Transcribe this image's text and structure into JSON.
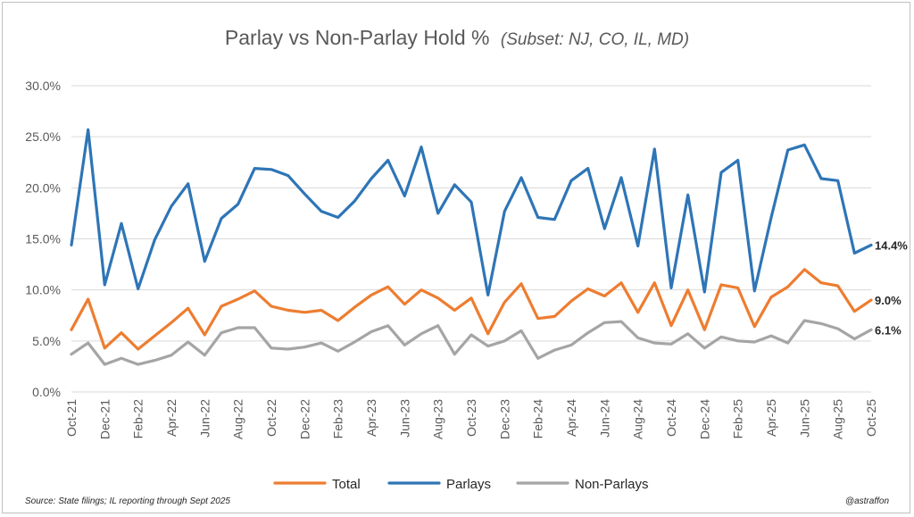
{
  "chart_data": {
    "type": "line",
    "title": "Parlay vs Non-Parlay Hold %",
    "subtitle": "(Subset: NJ, CO, IL, MD)",
    "ylim": [
      0,
      30
    ],
    "yticks": [
      "0.0%",
      "5.0%",
      "10.0%",
      "15.0%",
      "20.0%",
      "25.0%",
      "30.0%"
    ],
    "ytick_values": [
      0,
      5,
      10,
      15,
      20,
      25,
      30
    ],
    "grid": true,
    "legend_position": "bottom",
    "x": [
      "Oct-21",
      "Nov-21",
      "Dec-21",
      "Jan-22",
      "Feb-22",
      "Mar-22",
      "Apr-22",
      "May-22",
      "Jun-22",
      "Jul-22",
      "Aug-22",
      "Sep-22",
      "Oct-22",
      "Nov-22",
      "Dec-22",
      "Jan-23",
      "Feb-23",
      "Mar-23",
      "Apr-23",
      "May-23",
      "Jun-23",
      "Jul-23",
      "Aug-23",
      "Sep-23",
      "Oct-23",
      "Nov-23",
      "Dec-23",
      "Jan-24",
      "Feb-24",
      "Mar-24",
      "Apr-24",
      "May-24",
      "Jun-24",
      "Jul-24",
      "Aug-24",
      "Sep-24",
      "Oct-24",
      "Nov-24",
      "Dec-24",
      "Jan-25",
      "Feb-25",
      "Mar-25",
      "Apr-25",
      "May-25",
      "Jun-25",
      "Jul-25",
      "Aug-25",
      "Sep-25",
      "Oct-25"
    ],
    "xtick_labels": [
      "Oct-21",
      "Dec-21",
      "Feb-22",
      "Apr-22",
      "Jun-22",
      "Aug-22",
      "Oct-22",
      "Dec-22",
      "Feb-23",
      "Apr-23",
      "Jun-23",
      "Aug-23",
      "Oct-23",
      "Dec-23",
      "Feb-24",
      "Apr-24",
      "Jun-24",
      "Aug-24",
      "Oct-24",
      "Dec-24",
      "Feb-25",
      "Apr-25",
      "Jun-25",
      "Aug-25",
      "Oct-25"
    ],
    "series": [
      {
        "name": "Total",
        "color": "#ed7d31",
        "end_label": "9.0%",
        "values": [
          6.1,
          9.1,
          4.3,
          5.8,
          4.2,
          5.5,
          6.8,
          8.2,
          5.6,
          8.4,
          9.1,
          9.9,
          8.4,
          8.0,
          7.8,
          8.0,
          7.0,
          8.3,
          9.5,
          10.3,
          8.6,
          10.0,
          9.2,
          8.0,
          9.2,
          5.7,
          8.8,
          10.6,
          7.2,
          7.4,
          8.9,
          10.1,
          9.4,
          10.7,
          7.8,
          10.7,
          6.5,
          10.0,
          6.1,
          10.5,
          10.2,
          6.4,
          9.3,
          10.3,
          12.0,
          10.7,
          10.4,
          7.9,
          9.0
        ]
      },
      {
        "name": "Parlays",
        "color": "#2e75b6",
        "end_label": "14.4%",
        "values": [
          14.4,
          25.7,
          10.5,
          16.5,
          10.1,
          14.9,
          18.2,
          20.4,
          12.8,
          17.0,
          18.4,
          21.9,
          21.8,
          21.2,
          19.4,
          17.7,
          17.1,
          18.7,
          20.9,
          22.7,
          19.2,
          24.0,
          17.5,
          20.3,
          18.6,
          9.5,
          17.7,
          21.0,
          17.1,
          16.9,
          20.7,
          21.9,
          16.0,
          21.0,
          14.3,
          23.8,
          10.2,
          19.3,
          9.8,
          21.5,
          22.7,
          9.9,
          17.1,
          23.7,
          24.2,
          20.9,
          20.7,
          13.6,
          14.4
        ]
      },
      {
        "name": "Non-Parlays",
        "color": "#a5a5a5",
        "end_label": "6.1%",
        "values": [
          3.7,
          4.8,
          2.7,
          3.3,
          2.7,
          3.1,
          3.6,
          4.9,
          3.6,
          5.8,
          6.3,
          6.3,
          4.3,
          4.2,
          4.4,
          4.8,
          4.0,
          4.9,
          5.9,
          6.5,
          4.6,
          5.7,
          6.5,
          3.7,
          5.6,
          4.5,
          5.0,
          6.0,
          3.3,
          4.1,
          4.6,
          5.8,
          6.8,
          6.9,
          5.3,
          4.8,
          4.7,
          5.7,
          4.3,
          5.4,
          5.0,
          4.9,
          5.5,
          4.8,
          7.0,
          6.7,
          6.2,
          5.2,
          6.1
        ]
      }
    ],
    "legend_order": [
      "Total",
      "Parlays",
      "Non-Parlays"
    ]
  },
  "footer": {
    "source": "Source: State filings;  IL reporting through Sept 2025",
    "handle": "@astraffon"
  },
  "colors": {
    "gridline": "#d9d9d9",
    "axis_text": "#595959"
  }
}
